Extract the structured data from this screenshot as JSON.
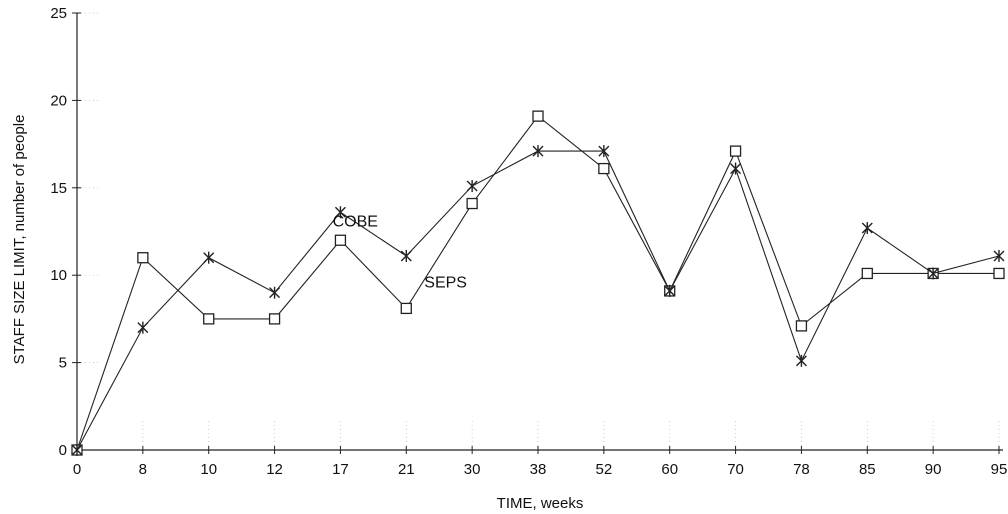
{
  "chart_data": {
    "type": "line",
    "title": "",
    "xlabel": "TIME, weeks",
    "ylabel": "STAFF SIZE LIMIT, number of people",
    "categories": [
      "0",
      "8",
      "10",
      "12",
      "17",
      "21",
      "30",
      "38",
      "52",
      "60",
      "70",
      "78",
      "85",
      "90",
      "95"
    ],
    "ylim": [
      0,
      25
    ],
    "yticks": [
      0,
      5,
      10,
      15,
      20,
      25
    ],
    "grid": false,
    "series": [
      {
        "name": "SEPS",
        "marker": "square",
        "values": [
          0,
          11,
          7.5,
          7.5,
          12,
          8.1,
          14.1,
          19.1,
          16.1,
          9.1,
          17.1,
          7.1,
          10.1,
          10.1,
          10.1
        ]
      },
      {
        "name": "COBE",
        "marker": "star",
        "values": [
          0,
          7,
          11,
          9,
          13.6,
          11.1,
          15.1,
          17.1,
          17.1,
          9.1,
          16.1,
          5.1,
          12.7,
          10.1,
          11.1
        ]
      }
    ],
    "annotations": [
      {
        "text": "COBE",
        "series": "COBE"
      },
      {
        "text": "SEPS",
        "series": "SEPS"
      }
    ]
  }
}
